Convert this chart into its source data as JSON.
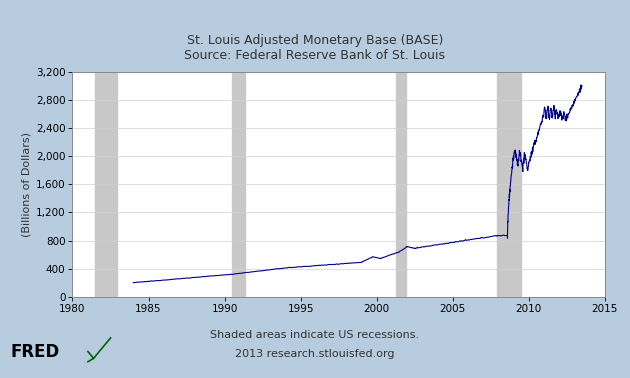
{
  "title_line1": "St. Louis Adjusted Monetary Base (BASE)",
  "title_line2": "Source: Federal Reserve Bank of St. Louis",
  "ylabel": "(Billions of Dollars)",
  "footer_line1": "Shaded areas indicate US recessions.",
  "footer_line2": "2013 research.stlouisfed.org",
  "xlim": [
    1980,
    2015
  ],
  "ylim": [
    0,
    3200
  ],
  "yticks": [
    0,
    400,
    800,
    1200,
    1600,
    2000,
    2400,
    2800,
    3200
  ],
  "xticks": [
    1980,
    1985,
    1990,
    1995,
    2000,
    2005,
    2010,
    2015
  ],
  "recession_bands": [
    [
      1981.5,
      1982.92
    ],
    [
      1990.5,
      1991.33
    ],
    [
      2001.25,
      2001.92
    ],
    [
      2007.92,
      2009.5
    ]
  ],
  "line_color": "#00008B",
  "recession_color": "#C8C8C8",
  "background_outer": "#B8CCE0",
  "background_plot": "#FFFFFF",
  "grid_color": "#D0D0D0"
}
